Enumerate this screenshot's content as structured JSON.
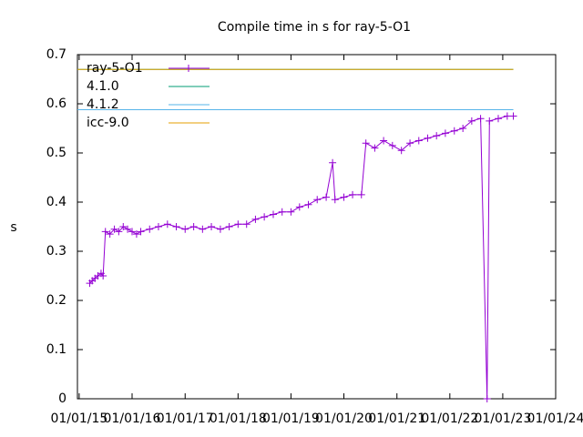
{
  "chart_data": {
    "type": "line",
    "title": "Compile time in s for ray-5-O1",
    "ylabel": "s",
    "x": [
      "2015-03-15",
      "2015-04-01",
      "2015-04-20",
      "2015-05-10",
      "2015-06-01",
      "2015-06-15",
      "2015-07-01",
      "2015-08-01",
      "2015-09-01",
      "2015-10-01",
      "2015-11-01",
      "2015-12-01",
      "2016-01-01",
      "2016-02-01",
      "2016-03-01",
      "2016-05-01",
      "2016-07-01",
      "2016-09-01",
      "2016-11-01",
      "2017-01-01",
      "2017-03-01",
      "2017-05-01",
      "2017-07-01",
      "2017-09-01",
      "2017-11-01",
      "2018-01-01",
      "2018-03-01",
      "2018-05-01",
      "2018-07-01",
      "2018-09-01",
      "2018-11-01",
      "2019-01-01",
      "2019-03-01",
      "2019-05-01",
      "2019-07-01",
      "2019-09-01",
      "2019-10-15",
      "2019-11-01",
      "2020-01-01",
      "2020-03-01",
      "2020-05-01",
      "2020-06-01",
      "2020-08-01",
      "2020-10-01",
      "2020-12-01",
      "2021-02-01",
      "2021-04-01",
      "2021-06-01",
      "2021-08-01",
      "2021-10-01",
      "2021-12-01",
      "2022-02-01",
      "2022-04-01",
      "2022-06-01",
      "2022-08-01",
      "2022-09-15",
      "2022-10-01",
      "2022-12-01",
      "2023-02-01",
      "2023-03-15"
    ],
    "series": [
      {
        "name": "ray-5-O1",
        "color": "#9400d3",
        "values": [
          0.235,
          0.24,
          0.245,
          0.25,
          0.255,
          0.25,
          0.34,
          0.335,
          0.345,
          0.34,
          0.35,
          0.345,
          0.34,
          0.335,
          0.34,
          0.345,
          0.35,
          0.355,
          0.35,
          0.345,
          0.35,
          0.345,
          0.35,
          0.345,
          0.35,
          0.355,
          0.355,
          0.365,
          0.37,
          0.375,
          0.38,
          0.38,
          0.39,
          0.395,
          0.405,
          0.41,
          0.48,
          0.405,
          0.41,
          0.415,
          0.415,
          0.52,
          0.51,
          0.525,
          0.515,
          0.505,
          0.52,
          0.525,
          0.53,
          0.535,
          0.54,
          0.545,
          0.55,
          0.565,
          0.57,
          0,
          0.565,
          0.57,
          0.575,
          0.575
        ]
      }
    ],
    "references": [
      {
        "name": "4.1.0",
        "color": "#009e73",
        "value": 0.67
      },
      {
        "name": "4.1.2",
        "color": "#56b4e9",
        "value": 0.588
      },
      {
        "name": "icc-9.0",
        "color": "#e69f00",
        "value": 0.67
      }
    ],
    "xlim": [
      "2014-12-20",
      "2024-01-01"
    ],
    "xticks": [
      {
        "value": "2015-01-01",
        "label": "01/01/15"
      },
      {
        "value": "2016-01-01",
        "label": "01/01/16"
      },
      {
        "value": "2017-01-01",
        "label": "01/01/17"
      },
      {
        "value": "2018-01-01",
        "label": "01/01/18"
      },
      {
        "value": "2019-01-01",
        "label": "01/01/19"
      },
      {
        "value": "2020-01-01",
        "label": "01/01/20"
      },
      {
        "value": "2021-01-01",
        "label": "01/01/21"
      },
      {
        "value": "2022-01-01",
        "label": "01/01/22"
      },
      {
        "value": "2023-01-01",
        "label": "01/01/23"
      },
      {
        "value": "2024-01-01",
        "label": "01/01/24"
      }
    ],
    "ylim": [
      0,
      0.7
    ],
    "yticks": [
      0,
      0.1,
      0.2,
      0.3,
      0.4,
      0.5,
      0.6,
      0.7
    ],
    "legend": "top left"
  }
}
